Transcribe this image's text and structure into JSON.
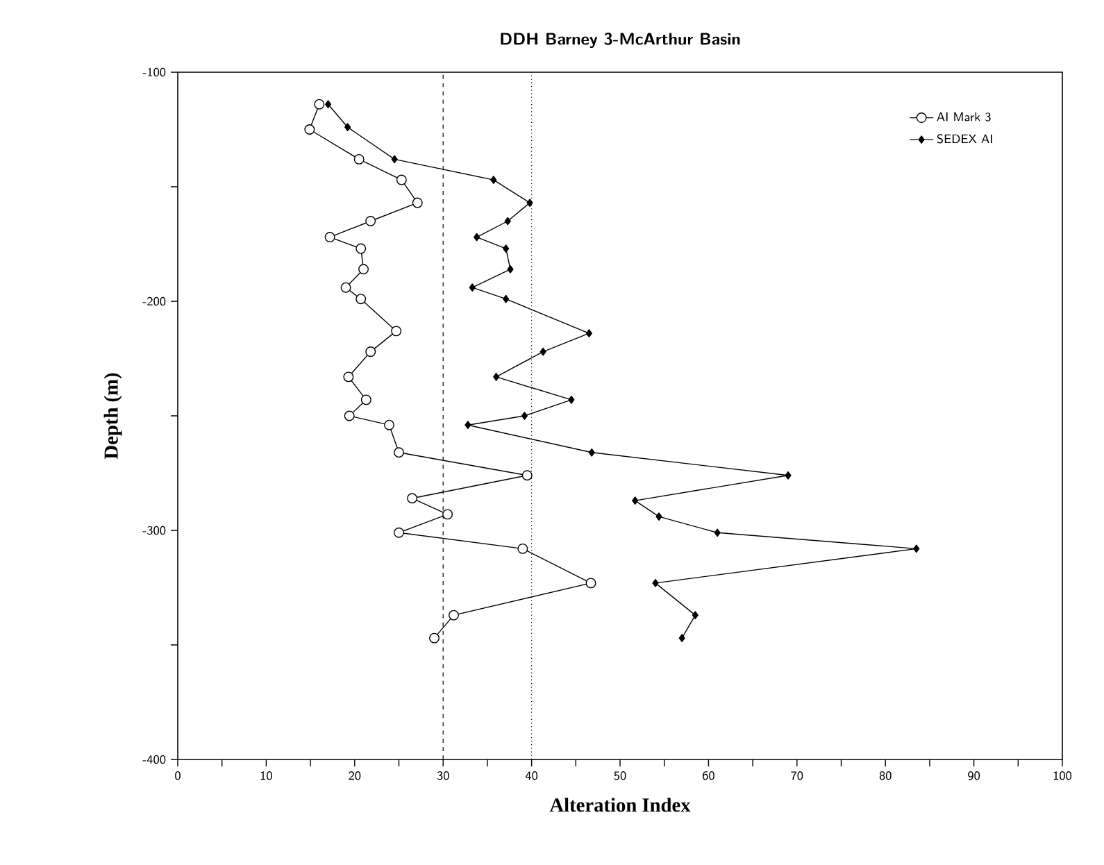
{
  "chart_data": {
    "type": "line",
    "title": "DDH  Barney  3-McArthur  Basin",
    "xlabel": "Alteration  Index",
    "ylabel": "Depth   (m)",
    "xlim": [
      0,
      100
    ],
    "ylim": [
      -400,
      -100
    ],
    "xticks": [
      0,
      {
        "value": 5,
        "label": null
      },
      10,
      {
        "value": 15,
        "label": null
      },
      20,
      {
        "value": 25,
        "label": null
      },
      30,
      {
        "value": 35,
        "label": null
      },
      40,
      {
        "value": 45,
        "label": null
      },
      50,
      {
        "value": 55,
        "label": null
      },
      60,
      {
        "value": 65,
        "label": null
      },
      70,
      {
        "value": 75,
        "label": null
      },
      80,
      {
        "value": 85,
        "label": null
      },
      90,
      {
        "value": 95,
        "label": null
      },
      100
    ],
    "yticks": [
      -100,
      {
        "value": -150,
        "label": null
      },
      -200,
      {
        "value": -250,
        "label": null
      },
      -300,
      {
        "value": -350,
        "label": null
      },
      -400
    ],
    "grid": false,
    "legend": "top right",
    "line_style": "solid",
    "ref_lines": [
      {
        "axis": "x",
        "value": 30,
        "line_style": "dashed",
        "color": "#000000"
      },
      {
        "axis": "x",
        "value": 40,
        "line_style": "dotted",
        "color": "#000000"
      }
    ],
    "series": [
      {
        "name": "AI Mark 3",
        "color": "#000000",
        "marker": "circle",
        "x": [
          16,
          14.9,
          20.5,
          25.3,
          27.1,
          21.8,
          17.2,
          20.7,
          21.0,
          19.0,
          20.7,
          24.7,
          21.8,
          19.3,
          21.3,
          19.4,
          23.9,
          25.0,
          39.5,
          26.5,
          30.5,
          25.0,
          39.0,
          46.7,
          31.2,
          29.0
        ],
        "values": [
          -114,
          -125,
          -138,
          -147,
          -157,
          -165,
          -172,
          -177,
          -186,
          -194,
          -199,
          -213,
          -222,
          -233,
          -243,
          -250,
          -254,
          -266,
          -276,
          -286,
          -293,
          -301,
          -308,
          -323,
          -337,
          -347
        ]
      },
      {
        "name": "SEDEX AI",
        "color": "#000000",
        "marker": "diamond",
        "x": [
          17,
          19.2,
          24.5,
          35.7,
          39.8,
          37.3,
          33.8,
          37.1,
          37.6,
          33.3,
          37.1,
          46.5,
          41.3,
          36.0,
          44.5,
          39.2,
          32.8,
          46.8,
          69.0,
          51.7,
          54.4,
          61.0,
          83.5,
          54.0,
          58.5,
          57.0
        ],
        "values": [
          -114,
          -124,
          -138,
          -147,
          -157,
          -165,
          -172,
          -177,
          -186,
          -194,
          -199,
          -214,
          -222,
          -233,
          -243,
          -250,
          -254,
          -266,
          -276,
          -287,
          -294,
          -301,
          -308,
          -323,
          -337,
          -347
        ]
      }
    ]
  }
}
